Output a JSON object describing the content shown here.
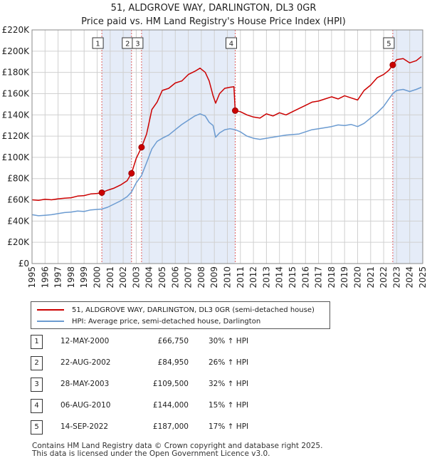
{
  "title_line1": "51, ALDGROVE WAY, DARLINGTON, DL3 0GR",
  "title_line2": "Price paid vs. HM Land Registry's House Price Index (HPI)",
  "legend": {
    "property_label": "51, ALDGROVE WAY, DARLINGTON, DL3 0GR (semi-detached house)",
    "hpi_label": "HPI: Average price, semi-detached house, Darlington",
    "property_color": "#cc0000",
    "hpi_color": "#6b9bd1"
  },
  "sales": [
    {
      "num": "1",
      "date": "12-MAY-2000",
      "price": "£66,750",
      "hpi": "30% ↑ HPI"
    },
    {
      "num": "2",
      "date": "22-AUG-2002",
      "price": "£84,950",
      "hpi": "26% ↑ HPI"
    },
    {
      "num": "3",
      "date": "28-MAY-2003",
      "price": "£109,500",
      "hpi": "32% ↑ HPI"
    },
    {
      "num": "4",
      "date": "06-AUG-2010",
      "price": "£144,000",
      "hpi": "15% ↑ HPI"
    },
    {
      "num": "5",
      "date": "14-SEP-2022",
      "price": "£187,000",
      "hpi": "17% ↑ HPI"
    }
  ],
  "footer_line1": "Contains HM Land Registry data © Crown copyright and database right 2025.",
  "footer_line2": "This data is licensed under the Open Government Licence v3.0.",
  "chart_data": {
    "type": "line",
    "title": "51, ALDGROVE WAY, DARLINGTON, DL3 0GR",
    "subtitle": "Price paid vs. HM Land Registry's House Price Index (HPI)",
    "xlim": [
      1995,
      2025
    ],
    "ylim": [
      0,
      220000
    ],
    "x_ticks": [
      "1995",
      "1996",
      "1997",
      "1998",
      "1999",
      "2000",
      "2001",
      "2002",
      "2003",
      "2004",
      "2005",
      "2006",
      "2007",
      "2008",
      "2009",
      "2010",
      "2011",
      "2012",
      "2013",
      "2014",
      "2015",
      "2016",
      "2017",
      "2018",
      "2019",
      "2020",
      "2021",
      "2022",
      "2023",
      "2024",
      "2025"
    ],
    "y_ticks": [
      {
        "value": 0,
        "label": "£0"
      },
      {
        "value": 20000,
        "label": "£20K"
      },
      {
        "value": 40000,
        "label": "£40K"
      },
      {
        "value": 60000,
        "label": "£60K"
      },
      {
        "value": 80000,
        "label": "£80K"
      },
      {
        "value": 100000,
        "label": "£100K"
      },
      {
        "value": 120000,
        "label": "£120K"
      },
      {
        "value": 140000,
        "label": "£140K"
      },
      {
        "value": 160000,
        "label": "£160K"
      },
      {
        "value": 180000,
        "label": "£180K"
      },
      {
        "value": 200000,
        "label": "£200K"
      },
      {
        "value": 220000,
        "label": "£220K"
      }
    ],
    "grid": true,
    "highlight_periods": [
      [
        2000.36,
        2002.64
      ],
      [
        2003.41,
        2010.6
      ],
      [
        2022.7,
        2025
      ]
    ],
    "sale_markers": [
      {
        "num": "1",
        "x": 2000.36,
        "y": 66750
      },
      {
        "num": "2",
        "x": 2002.64,
        "y": 84950
      },
      {
        "num": "3",
        "x": 2003.41,
        "y": 109500
      },
      {
        "num": "4",
        "x": 2010.6,
        "y": 144000
      },
      {
        "num": "5",
        "x": 2022.7,
        "y": 187000
      }
    ],
    "series": [
      {
        "name": "51, ALDGROVE WAY, DARLINGTON, DL3 0GR (semi-detached house)",
        "color": "#cc0000",
        "x": [
          1995.0,
          1995.5,
          1996.0,
          1996.5,
          1997.0,
          1997.5,
          1998.0,
          1998.5,
          1999.0,
          1999.5,
          2000.0,
          2000.36,
          2000.8,
          2001.3,
          2001.8,
          2002.3,
          2002.64,
          2003.0,
          2003.41,
          2003.8,
          2004.2,
          2004.6,
          2005.0,
          2005.5,
          2006.0,
          2006.5,
          2007.0,
          2007.5,
          2007.9,
          2008.3,
          2008.6,
          2008.9,
          2009.1,
          2009.4,
          2009.8,
          2010.2,
          2010.5,
          2010.6,
          2011.0,
          2011.5,
          2012.0,
          2012.5,
          2013.0,
          2013.5,
          2014.0,
          2014.5,
          2015.0,
          2015.5,
          2016.0,
          2016.5,
          2017.0,
          2017.5,
          2018.0,
          2018.5,
          2019.0,
          2019.5,
          2020.0,
          2020.5,
          2021.0,
          2021.5,
          2022.0,
          2022.4,
          2022.7,
          2023.0,
          2023.5,
          2024.0,
          2024.5,
          2024.9
        ],
        "y": [
          60000,
          59500,
          60500,
          60000,
          61000,
          61500,
          62000,
          63500,
          64000,
          65500,
          66000,
          66750,
          69000,
          71000,
          74000,
          78000,
          84950,
          99000,
          109500,
          122000,
          145000,
          152000,
          163000,
          165000,
          170000,
          172000,
          178000,
          181000,
          184000,
          180000,
          172000,
          158000,
          151000,
          160000,
          165000,
          166000,
          166500,
          144000,
          143000,
          140000,
          138000,
          137000,
          141000,
          139000,
          142000,
          140000,
          143000,
          146000,
          149000,
          152000,
          153000,
          155000,
          157000,
          155000,
          158000,
          156000,
          154000,
          163000,
          168000,
          175000,
          178000,
          182000,
          187000,
          192000,
          193000,
          189000,
          191000,
          195000
        ]
      },
      {
        "name": "HPI: Average price, semi-detached house, Darlington",
        "color": "#6b9bd1",
        "x": [
          1995.0,
          1995.5,
          1996.0,
          1996.5,
          1997.0,
          1997.5,
          1998.0,
          1998.5,
          1999.0,
          1999.5,
          2000.0,
          2000.36,
          2000.8,
          2001.3,
          2001.8,
          2002.3,
          2002.64,
          2003.0,
          2003.41,
          2003.8,
          2004.2,
          2004.6,
          2005.0,
          2005.5,
          2006.0,
          2006.5,
          2007.0,
          2007.5,
          2007.9,
          2008.3,
          2008.6,
          2008.9,
          2009.1,
          2009.4,
          2009.8,
          2010.2,
          2010.6,
          2011.0,
          2011.5,
          2012.0,
          2012.5,
          2013.0,
          2013.5,
          2014.0,
          2014.5,
          2015.0,
          2015.5,
          2016.0,
          2016.5,
          2017.0,
          2017.5,
          2018.0,
          2018.5,
          2019.0,
          2019.5,
          2020.0,
          2020.5,
          2021.0,
          2021.5,
          2022.0,
          2022.4,
          2022.7,
          2023.0,
          2023.5,
          2024.0,
          2024.5,
          2024.9
        ],
        "y": [
          46000,
          45000,
          45500,
          46000,
          47000,
          48000,
          48500,
          49500,
          49000,
          50500,
          51000,
          51300,
          53000,
          56000,
          59000,
          63000,
          67400,
          76000,
          83000,
          95000,
          108000,
          115000,
          118000,
          121000,
          126000,
          131000,
          135000,
          139000,
          141000,
          139000,
          133000,
          130000,
          119000,
          123000,
          126000,
          127000,
          126000,
          124000,
          120000,
          118000,
          117000,
          118000,
          119000,
          120000,
          121000,
          121500,
          122000,
          124000,
          126000,
          127000,
          128000,
          129000,
          130500,
          130000,
          131000,
          129000,
          132000,
          137000,
          142000,
          148000,
          155000,
          160000,
          163000,
          164000,
          162000,
          164000,
          166000
        ]
      }
    ]
  }
}
